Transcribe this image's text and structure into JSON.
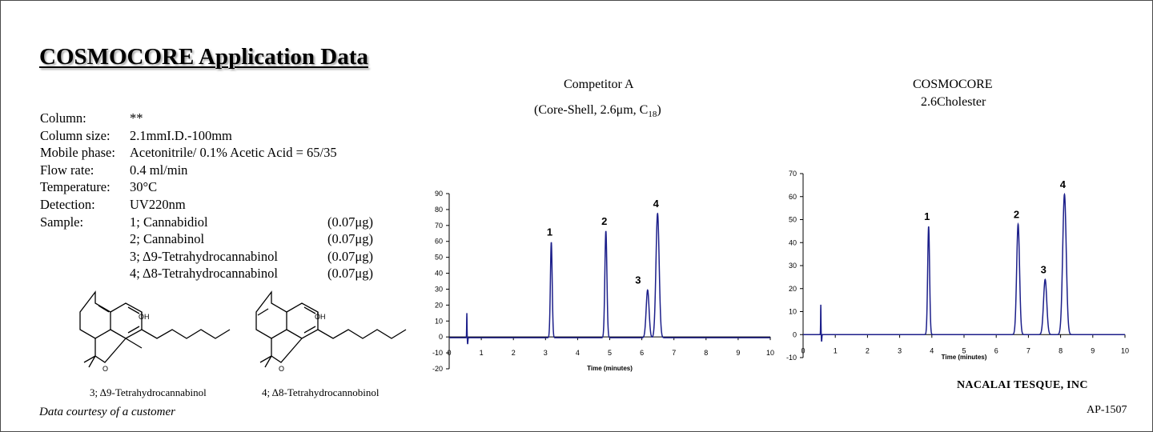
{
  "title": "COSMOCORE Application Data",
  "conditions": [
    {
      "label": "Column:",
      "value": "**"
    },
    {
      "label": "Column size:",
      "value": "2.1mmI.D.-100mm"
    },
    {
      "label": "Mobile phase:",
      "value": "Acetonitrile/ 0.1% Acetic Acid = 65/35"
    },
    {
      "label": "Flow rate:",
      "value": "0.4 ml/min"
    },
    {
      "label": "Temperature:",
      "value": "30°C"
    },
    {
      "label": "Detection:",
      "value": "UV220nm"
    }
  ],
  "sample": {
    "label": "Sample:",
    "items": [
      {
        "name": "1; Cannabidiol",
        "amount": "(0.07μg)"
      },
      {
        "name": "2; Cannabinol",
        "amount": "(0.07μg)"
      },
      {
        "name": "3; Δ9-Tetrahydrocannabinol",
        "amount": "(0.07μg)"
      },
      {
        "name": "4; Δ8-Tetrahydrocannabinol",
        "amount": "(0.07μg)"
      }
    ]
  },
  "structures": [
    {
      "caption": "3; Δ9-Tetrahydrocannabinol",
      "hydroxyl": "OH"
    },
    {
      "caption": "4; Δ8-Tetrahydrocannobinol",
      "hydroxyl": "OH"
    }
  ],
  "courtesy": "Data courtesy of a customer",
  "company": "NACALAI TESQUE, INC",
  "doc_number": "AP-1507",
  "line_color": "#1c1f8a",
  "chart_data": [
    {
      "type": "line",
      "title": "Competitor A",
      "subtitle_prefix": "(Core-Shell, 2.6μm, C",
      "subtitle_sub": "18",
      "subtitle_suffix": ")",
      "xlabel": "Time (minutes)",
      "xlim": [
        0,
        10
      ],
      "ylim": [
        -20,
        90
      ],
      "xticks": [
        0,
        1,
        2,
        3,
        4,
        5,
        6,
        7,
        8,
        9,
        10
      ],
      "yticks": [
        -20,
        -10,
        0,
        10,
        20,
        30,
        40,
        50,
        60,
        70,
        80,
        90
      ],
      "baseline": -0.5,
      "injection": {
        "t": 0.55,
        "up": 15.5,
        "down": -4
      },
      "peaks": [
        {
          "label": "1",
          "t": 3.18,
          "height": 60,
          "width": 0.028
        },
        {
          "label": "2",
          "t": 4.88,
          "height": 67,
          "width": 0.032
        },
        {
          "label": "3",
          "t": 6.18,
          "height": 30,
          "width": 0.045
        },
        {
          "label": "4",
          "t": 6.49,
          "height": 78,
          "width": 0.05
        }
      ]
    },
    {
      "type": "line",
      "title": "COSMOCORE",
      "subtitle": "2.6Cholester",
      "xlabel": "Time (minutes)",
      "xlim": [
        0,
        10
      ],
      "ylim": [
        -10,
        70
      ],
      "xticks": [
        0,
        1,
        2,
        3,
        4,
        5,
        6,
        7,
        8,
        9,
        10
      ],
      "yticks": [
        -10,
        0,
        10,
        20,
        30,
        40,
        50,
        60,
        70
      ],
      "baseline": 0,
      "injection": {
        "t": 0.55,
        "up": 13,
        "down": -3
      },
      "peaks": [
        {
          "label": "1",
          "t": 3.9,
          "height": 47,
          "width": 0.03
        },
        {
          "label": "2",
          "t": 6.68,
          "height": 48,
          "width": 0.045
        },
        {
          "label": "3",
          "t": 7.52,
          "height": 24,
          "width": 0.05
        },
        {
          "label": "4",
          "t": 8.12,
          "height": 61,
          "width": 0.055
        }
      ]
    }
  ]
}
